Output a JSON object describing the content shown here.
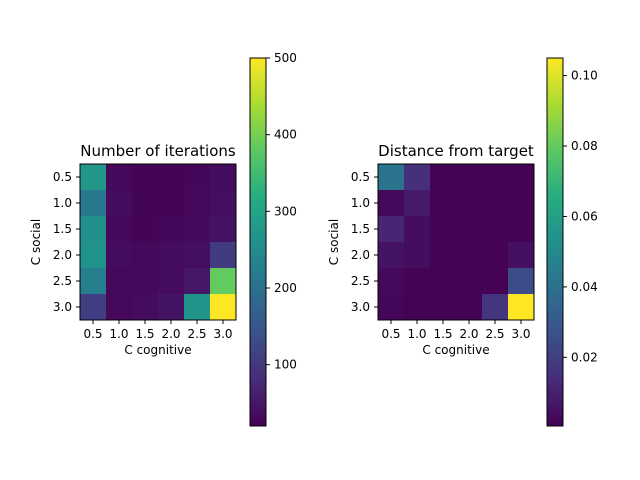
{
  "chart_data": [
    {
      "type": "heatmap",
      "title": "Number of iterations",
      "xlabel": "C cognitive",
      "ylabel": "C social",
      "x_ticks": [
        "0.5",
        "1.0",
        "1.5",
        "2.0",
        "2.5",
        "3.0"
      ],
      "y_ticks": [
        "0.5",
        "1.0",
        "1.5",
        "2.0",
        "2.5",
        "3.0"
      ],
      "colormap": "viridis",
      "zlim": [
        20,
        500
      ],
      "colorbar_ticks": [
        "100",
        "200",
        "300",
        "400",
        "500"
      ],
      "colorbar_tick_values": [
        100,
        200,
        300,
        400,
        500
      ],
      "values": [
        [
          275,
          30,
          25,
          25,
          28,
          35
        ],
        [
          215,
          35,
          25,
          25,
          30,
          40
        ],
        [
          260,
          30,
          25,
          28,
          32,
          45
        ],
        [
          265,
          35,
          30,
          35,
          40,
          105
        ],
        [
          225,
          30,
          30,
          35,
          50,
          385
        ],
        [
          110,
          30,
          35,
          45,
          270,
          500
        ]
      ]
    },
    {
      "type": "heatmap",
      "title": "Distance from target",
      "xlabel": "C cognitive",
      "ylabel": "C social",
      "x_ticks": [
        "0.5",
        "1.0",
        "1.5",
        "2.0",
        "2.5",
        "3.0"
      ],
      "y_ticks": [
        "0.5",
        "1.0",
        "1.5",
        "2.0",
        "2.5",
        "3.0"
      ],
      "colormap": "viridis",
      "zlim": [
        0.0005,
        0.105
      ],
      "colorbar_ticks": [
        "0.02",
        "0.04",
        "0.06",
        "0.08",
        "0.10"
      ],
      "colorbar_tick_values": [
        0.02,
        0.04,
        0.06,
        0.08,
        0.1
      ],
      "values": [
        [
          0.041,
          0.015,
          0.001,
          0.001,
          0.001,
          0.001
        ],
        [
          0.003,
          0.008,
          0.001,
          0.001,
          0.001,
          0.001
        ],
        [
          0.012,
          0.004,
          0.001,
          0.001,
          0.001,
          0.001
        ],
        [
          0.006,
          0.004,
          0.001,
          0.001,
          0.001,
          0.005
        ],
        [
          0.003,
          0.001,
          0.001,
          0.001,
          0.001,
          0.025
        ],
        [
          0.002,
          0.001,
          0.001,
          0.001,
          0.017,
          0.105
        ]
      ]
    }
  ]
}
